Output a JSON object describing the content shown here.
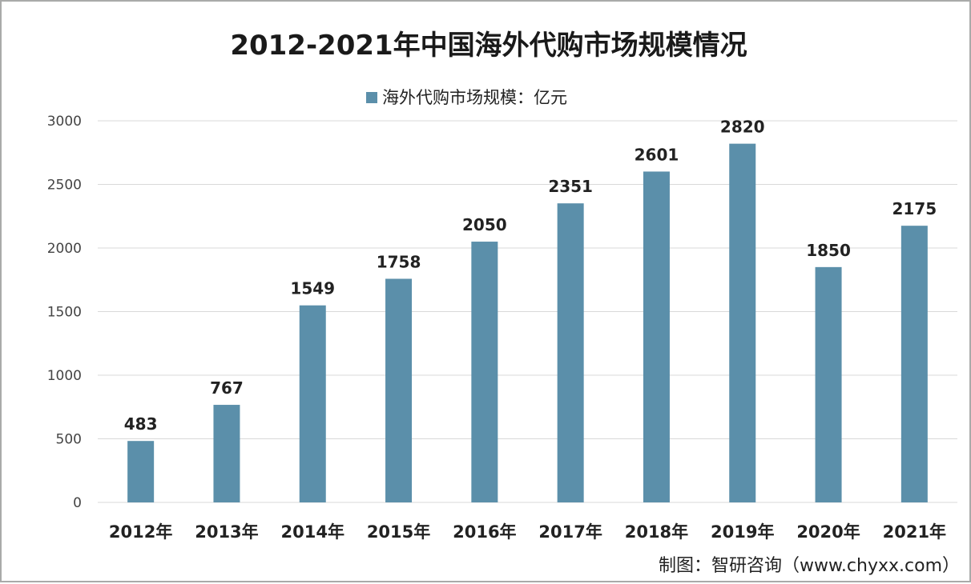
{
  "chart_data": {
    "type": "bar",
    "title": "2012-2021年中国海外代购市场规模情况",
    "categories": [
      "2012年",
      "2013年",
      "2014年",
      "2015年",
      "2016年",
      "2017年",
      "2018年",
      "2019年",
      "2020年",
      "2021年"
    ],
    "series": [
      {
        "name": "海外代购市场规模：亿元",
        "values": [
          483,
          767,
          1549,
          1758,
          2050,
          2351,
          2601,
          2820,
          1850,
          2175
        ]
      }
    ],
    "yticks": [
      "0",
      "500",
      "1000",
      "1500",
      "2000",
      "2500",
      "3000"
    ],
    "ylim": [
      0,
      3000
    ],
    "grid": true,
    "legend_placement": "top",
    "bar_color": "#5b8faa",
    "grid_color": "#d9d9d9",
    "show_data_labels": true
  },
  "source": "制图：智研咨询（www.chyxx.com）"
}
